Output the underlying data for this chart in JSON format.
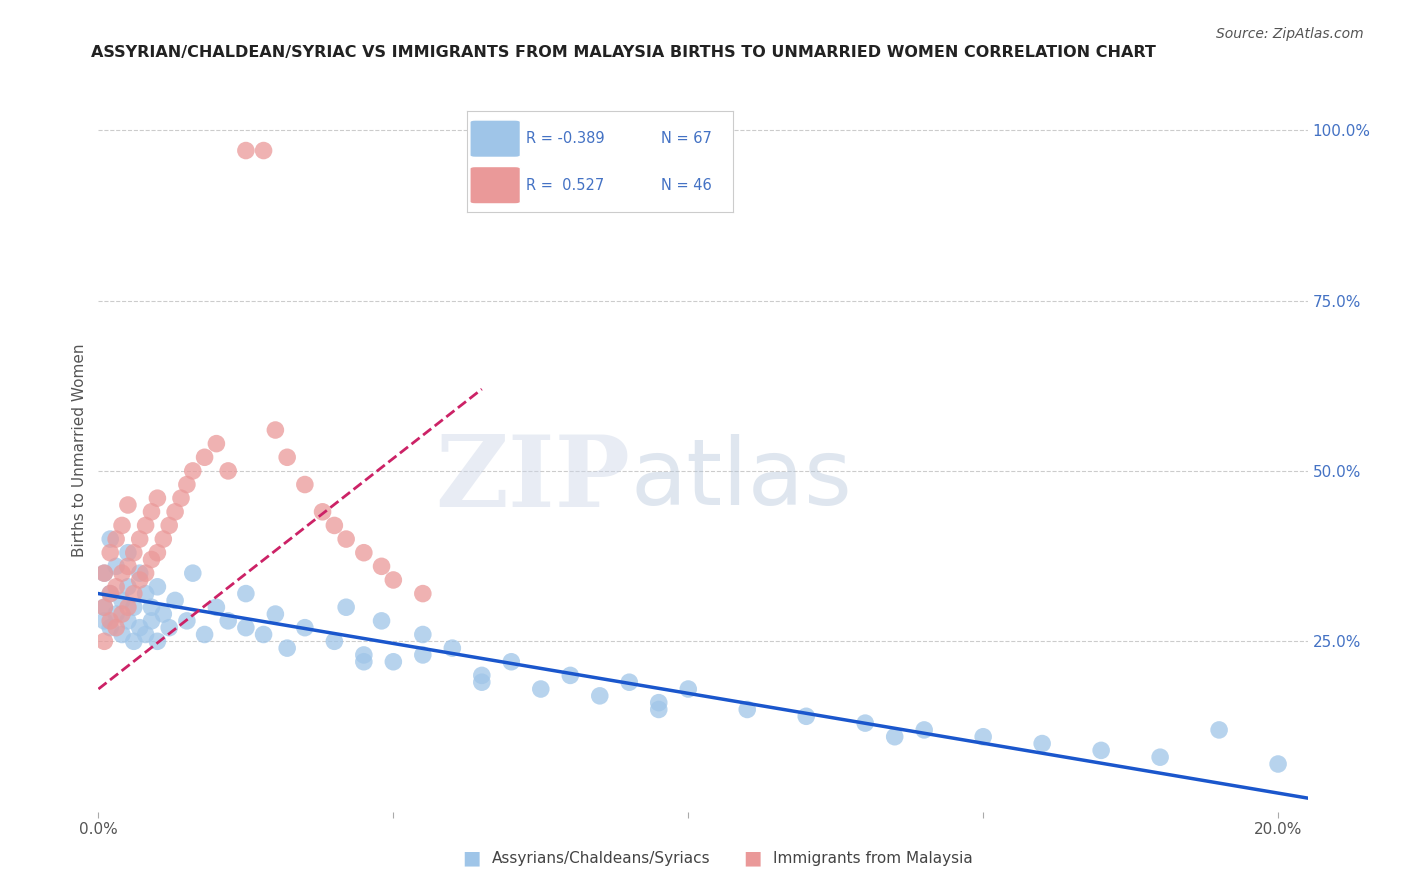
{
  "title": "ASSYRIAN/CHALDEAN/SYRIAC VS IMMIGRANTS FROM MALAYSIA BIRTHS TO UNMARRIED WOMEN CORRELATION CHART",
  "source": "Source: ZipAtlas.com",
  "ylabel": "Births to Unmarried Women",
  "legend_blue_R": "R = -0.389",
  "legend_blue_N": "N = 67",
  "legend_pink_R": "R =  0.527",
  "legend_pink_N": "N = 46",
  "legend_blue_label": "Assyrians/Chaldeans/Syriacs",
  "legend_pink_label": "Immigrants from Malaysia",
  "blue_color": "#9fc5e8",
  "pink_color": "#ea9999",
  "blue_line_color": "#1a56cc",
  "pink_line_color": "#cc2266",
  "grid_color": "#cccccc",
  "title_color": "#222222",
  "axis_color": "#4472c4",
  "blue_scatter_x": [
    0.001,
    0.001,
    0.001,
    0.002,
    0.002,
    0.002,
    0.003,
    0.003,
    0.004,
    0.004,
    0.005,
    0.005,
    0.005,
    0.006,
    0.006,
    0.007,
    0.007,
    0.008,
    0.008,
    0.009,
    0.009,
    0.01,
    0.01,
    0.011,
    0.012,
    0.013,
    0.015,
    0.016,
    0.018,
    0.02,
    0.022,
    0.025,
    0.028,
    0.03,
    0.032,
    0.035,
    0.04,
    0.042,
    0.045,
    0.048,
    0.05,
    0.055,
    0.06,
    0.065,
    0.07,
    0.075,
    0.08,
    0.085,
    0.09,
    0.095,
    0.1,
    0.11,
    0.12,
    0.13,
    0.14,
    0.15,
    0.16,
    0.17,
    0.18,
    0.19,
    0.2,
    0.045,
    0.095,
    0.135,
    0.065,
    0.025,
    0.055
  ],
  "blue_scatter_y": [
    0.3,
    0.35,
    0.28,
    0.32,
    0.27,
    0.4,
    0.29,
    0.36,
    0.31,
    0.26,
    0.33,
    0.28,
    0.38,
    0.3,
    0.25,
    0.35,
    0.27,
    0.32,
    0.26,
    0.3,
    0.28,
    0.33,
    0.25,
    0.29,
    0.27,
    0.31,
    0.28,
    0.35,
    0.26,
    0.3,
    0.28,
    0.32,
    0.26,
    0.29,
    0.24,
    0.27,
    0.25,
    0.3,
    0.23,
    0.28,
    0.22,
    0.26,
    0.24,
    0.2,
    0.22,
    0.18,
    0.2,
    0.17,
    0.19,
    0.16,
    0.18,
    0.15,
    0.14,
    0.13,
    0.12,
    0.11,
    0.1,
    0.09,
    0.08,
    0.12,
    0.07,
    0.22,
    0.15,
    0.11,
    0.19,
    0.27,
    0.23
  ],
  "pink_scatter_x": [
    0.001,
    0.001,
    0.001,
    0.002,
    0.002,
    0.002,
    0.003,
    0.003,
    0.003,
    0.004,
    0.004,
    0.004,
    0.005,
    0.005,
    0.005,
    0.006,
    0.006,
    0.007,
    0.007,
    0.008,
    0.008,
    0.009,
    0.009,
    0.01,
    0.01,
    0.011,
    0.012,
    0.013,
    0.014,
    0.015,
    0.016,
    0.018,
    0.02,
    0.022,
    0.025,
    0.028,
    0.03,
    0.032,
    0.035,
    0.038,
    0.04,
    0.042,
    0.045,
    0.048,
    0.05,
    0.055
  ],
  "pink_scatter_y": [
    0.25,
    0.3,
    0.35,
    0.28,
    0.32,
    0.38,
    0.27,
    0.33,
    0.4,
    0.29,
    0.35,
    0.42,
    0.3,
    0.36,
    0.45,
    0.32,
    0.38,
    0.34,
    0.4,
    0.35,
    0.42,
    0.37,
    0.44,
    0.38,
    0.46,
    0.4,
    0.42,
    0.44,
    0.46,
    0.48,
    0.5,
    0.52,
    0.54,
    0.5,
    0.97,
    0.97,
    0.56,
    0.52,
    0.48,
    0.44,
    0.42,
    0.4,
    0.38,
    0.36,
    0.34,
    0.32
  ],
  "blue_line_x": [
    0.0,
    0.205
  ],
  "blue_line_y": [
    0.32,
    0.02
  ],
  "pink_line_x": [
    0.0,
    0.065
  ],
  "pink_line_y": [
    0.18,
    0.62
  ],
  "xlim": [
    0.0,
    0.205
  ],
  "ylim": [
    0.0,
    1.06
  ]
}
